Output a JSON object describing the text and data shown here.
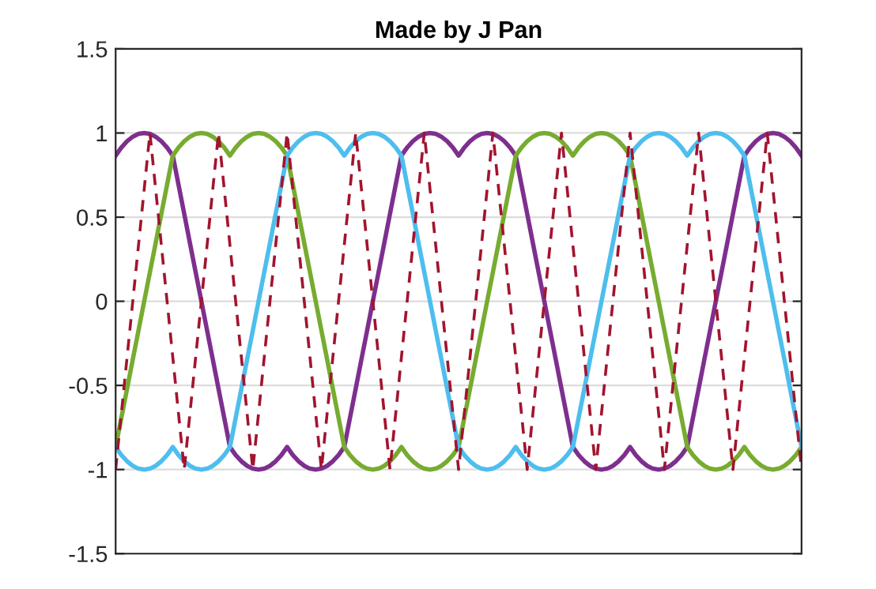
{
  "chart_data": {
    "type": "line",
    "title": "Made by J Pan",
    "categories": [
      null,
      null,
      null,
      null,
      null,
      null,
      null,
      null,
      null,
      null,
      null,
      null,
      null,
      null,
      null,
      null,
      null,
      null,
      null,
      null,
      null,
      null,
      null,
      null,
      null,
      null,
      null,
      null,
      null,
      null,
      null,
      null,
      null,
      null,
      null,
      null,
      null,
      null,
      null,
      null,
      null,
      null,
      null,
      null,
      null,
      null,
      null,
      null,
      null,
      null,
      null,
      null,
      null,
      null,
      null,
      null,
      null,
      null,
      null,
      null,
      null,
      null,
      null,
      null,
      null,
      null,
      null,
      null,
      null,
      null,
      null,
      null,
      null,
      null,
      null,
      null,
      null,
      null,
      null,
      null,
      null,
      null,
      null,
      null,
      null,
      null,
      null,
      null,
      null,
      null,
      null,
      null,
      null,
      null,
      null,
      null,
      null,
      null,
      null,
      null,
      null,
      null,
      null,
      null,
      null,
      null,
      null,
      null,
      null,
      null,
      null,
      null,
      null,
      null,
      null,
      null,
      null,
      null,
      null,
      null,
      null
    ],
    "ylim": [
      -1.5,
      1.5
    ],
    "yticks": [
      -1.5,
      -1,
      -0.5,
      0,
      0.5,
      1,
      1.5
    ],
    "tick_labels": "y",
    "grid": true,
    "series": [
      {
        "color": "#7e2f8e",
        "line_style": "solid",
        "values": [
          0.866,
          0.914,
          0.951,
          0.978,
          0.995,
          1,
          0.995,
          0.978,
          0.951,
          0.914,
          0.866,
          0.693,
          0.52,
          0.346,
          0.173,
          0,
          -0.173,
          -0.346,
          -0.52,
          -0.693,
          -0.866,
          -0.914,
          -0.951,
          -0.978,
          -0.995,
          -1,
          -0.995,
          -0.978,
          -0.951,
          -0.914,
          -0.866,
          -0.914,
          -0.951,
          -0.978,
          -0.995,
          -1,
          -0.995,
          -0.978,
          -0.951,
          -0.914,
          -0.866,
          -0.693,
          -0.52,
          -0.346,
          -0.173,
          0,
          0.173,
          0.346,
          0.52,
          0.693,
          0.866,
          0.914,
          0.951,
          0.978,
          0.995,
          1,
          0.995,
          0.978,
          0.951,
          0.914,
          0.866,
          0.914,
          0.951,
          0.978,
          0.995,
          1,
          0.995,
          0.978,
          0.951,
          0.914,
          0.866,
          0.693,
          0.52,
          0.346,
          0.173,
          0,
          -0.173,
          -0.346,
          -0.52,
          -0.693,
          -0.866,
          -0.914,
          -0.951,
          -0.978,
          -0.995,
          -1,
          -0.995,
          -0.978,
          -0.951,
          -0.914,
          -0.866,
          -0.914,
          -0.951,
          -0.978,
          -0.995,
          -1,
          -0.995,
          -0.978,
          -0.951,
          -0.914,
          -0.866,
          -0.693,
          -0.52,
          -0.346,
          -0.173,
          0,
          0.173,
          0.346,
          0.52,
          0.693,
          0.866,
          0.914,
          0.951,
          0.978,
          0.995,
          1,
          0.995,
          0.978,
          0.951,
          0.914,
          0.866
        ]
      },
      {
        "color": "#77ac30",
        "line_style": "solid",
        "values": [
          -0.866,
          -0.693,
          -0.52,
          -0.346,
          -0.173,
          0,
          0.173,
          0.346,
          0.52,
          0.693,
          0.866,
          0.914,
          0.951,
          0.978,
          0.995,
          1,
          0.995,
          0.978,
          0.951,
          0.914,
          0.866,
          0.914,
          0.951,
          0.978,
          0.995,
          1,
          0.995,
          0.978,
          0.951,
          0.914,
          0.866,
          0.693,
          0.52,
          0.346,
          0.173,
          0,
          -0.173,
          -0.346,
          -0.52,
          -0.693,
          -0.866,
          -0.914,
          -0.951,
          -0.978,
          -0.995,
          -1,
          -0.995,
          -0.978,
          -0.951,
          -0.914,
          -0.866,
          -0.914,
          -0.951,
          -0.978,
          -0.995,
          -1,
          -0.995,
          -0.978,
          -0.951,
          -0.914,
          -0.866,
          -0.693,
          -0.52,
          -0.346,
          -0.173,
          0,
          0.173,
          0.346,
          0.52,
          0.693,
          0.866,
          0.914,
          0.951,
          0.978,
          0.995,
          1,
          0.995,
          0.978,
          0.951,
          0.914,
          0.866,
          0.914,
          0.951,
          0.978,
          0.995,
          1,
          0.995,
          0.978,
          0.951,
          0.914,
          0.866,
          0.693,
          0.52,
          0.346,
          0.173,
          0,
          -0.173,
          -0.346,
          -0.52,
          -0.693,
          -0.866,
          -0.914,
          -0.951,
          -0.978,
          -0.995,
          -1,
          -0.995,
          -0.978,
          -0.951,
          -0.914,
          -0.866,
          -0.914,
          -0.951,
          -0.978,
          -0.995,
          -1,
          -0.995,
          -0.978,
          -0.951,
          -0.914,
          -0.866
        ]
      },
      {
        "color": "#4dbeee",
        "line_style": "solid",
        "values": [
          -0.866,
          -0.914,
          -0.951,
          -0.978,
          -0.995,
          -1,
          -0.995,
          -0.978,
          -0.951,
          -0.914,
          -0.866,
          -0.914,
          -0.951,
          -0.978,
          -0.995,
          -1,
          -0.995,
          -0.978,
          -0.951,
          -0.914,
          -0.866,
          -0.693,
          -0.52,
          -0.346,
          -0.173,
          0,
          0.173,
          0.346,
          0.52,
          0.693,
          0.866,
          0.914,
          0.951,
          0.978,
          0.995,
          1,
          0.995,
          0.978,
          0.951,
          0.914,
          0.866,
          0.914,
          0.951,
          0.978,
          0.995,
          1,
          0.995,
          0.978,
          0.951,
          0.914,
          0.866,
          0.693,
          0.52,
          0.346,
          0.173,
          0,
          -0.173,
          -0.346,
          -0.52,
          -0.693,
          -0.866,
          -0.914,
          -0.951,
          -0.978,
          -0.995,
          -1,
          -0.995,
          -0.978,
          -0.951,
          -0.914,
          -0.866,
          -0.914,
          -0.951,
          -0.978,
          -0.995,
          -1,
          -0.995,
          -0.978,
          -0.951,
          -0.914,
          -0.866,
          -0.693,
          -0.52,
          -0.346,
          -0.173,
          0,
          0.173,
          0.346,
          0.52,
          0.693,
          0.866,
          0.914,
          0.951,
          0.978,
          0.995,
          1,
          0.995,
          0.978,
          0.951,
          0.914,
          0.866,
          0.914,
          0.951,
          0.978,
          0.995,
          1,
          0.995,
          0.978,
          0.951,
          0.914,
          0.866,
          0.693,
          0.52,
          0.346,
          0.173,
          0,
          -0.173,
          -0.346,
          -0.52,
          -0.693,
          -0.866
        ]
      },
      {
        "color": "#a2142f",
        "line_style": "dashed",
        "values": [
          -1,
          -0.667,
          -0.333,
          0,
          0.333,
          0.667,
          1,
          0.667,
          0.333,
          0,
          -0.333,
          -0.667,
          -1,
          -0.667,
          -0.333,
          0,
          0.333,
          0.667,
          1,
          0.667,
          0.333,
          0,
          -0.333,
          -0.667,
          -1,
          -0.667,
          -0.333,
          0,
          0.333,
          0.667,
          1,
          0.667,
          0.333,
          0,
          -0.333,
          -0.667,
          -1,
          -0.667,
          -0.333,
          0,
          0.333,
          0.667,
          1,
          0.667,
          0.333,
          0,
          -0.333,
          -0.667,
          -1,
          -0.667,
          -0.333,
          0,
          0.333,
          0.667,
          1,
          0.667,
          0.333,
          0,
          -0.333,
          -0.667,
          -1,
          -0.667,
          -0.333,
          0,
          0.333,
          0.667,
          1,
          0.667,
          0.333,
          0,
          -0.333,
          -0.667,
          -1,
          -0.667,
          -0.333,
          0,
          0.333,
          0.667,
          1,
          0.667,
          0.333,
          0,
          -0.333,
          -0.667,
          -1,
          -0.667,
          -0.333,
          0,
          0.333,
          0.667,
          1,
          0.667,
          0.333,
          0,
          -0.333,
          -0.667,
          -1,
          -0.667,
          -0.333,
          0,
          0.333,
          0.667,
          1,
          0.667,
          0.333,
          0,
          -0.333,
          -0.667,
          -1,
          -0.667,
          -0.333,
          0,
          0.333,
          0.667,
          1,
          0.667,
          0.333,
          0,
          -0.333,
          -0.667,
          -1
        ]
      }
    ]
  }
}
